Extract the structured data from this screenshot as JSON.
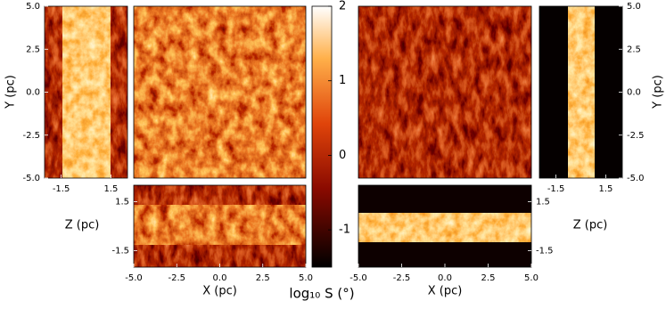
{
  "chart_data": [
    {
      "type": "image",
      "ylabel": "Y (pc)",
      "xlim": [
        -2.5,
        2.5
      ],
      "xticks": [
        -1.5,
        1.5
      ],
      "ylim": [
        -5,
        5
      ],
      "yticks": [
        {
          "value": 5,
          "label": "5.0"
        },
        2.5,
        {
          "value": 0,
          "label": "0.0"
        },
        -2.5,
        {
          "value": -5,
          "label": "-5.0"
        }
      ]
    },
    {
      "type": "image"
    },
    {
      "type": "image",
      "xlabel": "X (pc)",
      "ylabel": "Z (pc)",
      "xlim": [
        -5,
        5
      ],
      "xticks": [
        {
          "value": -5,
          "label": "-5.0"
        },
        -2.5,
        {
          "value": 0,
          "label": "0.0"
        },
        2.5,
        {
          "value": 5,
          "label": "5.0"
        }
      ],
      "ylim": [
        -2.5,
        2.5
      ],
      "yticks": [
        1.5,
        -1.5
      ]
    },
    {
      "type": "image"
    },
    {
      "type": "image",
      "ylabel": "Y (pc)",
      "xlim": [
        -2.5,
        2.5
      ],
      "xticks": [
        -1.5,
        1.5
      ],
      "ylim": [
        -5,
        5
      ],
      "yticks": [
        {
          "value": 5,
          "label": "5.0"
        },
        2.5,
        {
          "value": 0,
          "label": "0.0"
        },
        -2.5,
        {
          "value": -5,
          "label": "-5.0"
        }
      ]
    },
    {
      "type": "image",
      "xlabel": "X (pc)",
      "ylabel": "Z (pc)",
      "xlim": [
        -5,
        5
      ],
      "xticks": [
        {
          "value": -5,
          "label": "-5.0"
        },
        -2.5,
        {
          "value": 0,
          "label": "0.0"
        },
        2.5,
        {
          "value": 5,
          "label": "5.0"
        }
      ],
      "ylim": [
        -2.5,
        2.5
      ],
      "yticks": [
        1.5,
        -1.5
      ]
    },
    {
      "type": "colorbar",
      "label": "log₁₀ S (°)",
      "ylim": [
        -1.5,
        2
      ],
      "yticks": [
        2,
        1,
        0,
        -1
      ]
    }
  ]
}
